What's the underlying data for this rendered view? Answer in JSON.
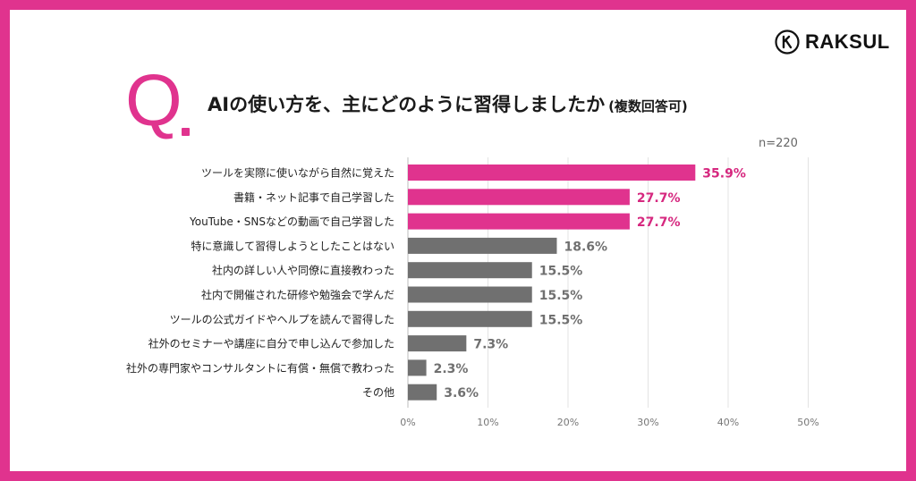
{
  "brand": {
    "name": "RAKSUL"
  },
  "question": {
    "mark": "Q",
    "text": "AIの使い方を、主にどのように習得しましたか",
    "note": "(複数回答可)",
    "sample": "n=220"
  },
  "colors": {
    "frame": "#e0338e",
    "highlight_bar": "#e0338e",
    "other_bar": "#707070",
    "highlight_label": "#d6287f",
    "other_label": "#707070"
  },
  "chart_data": {
    "type": "bar",
    "orientation": "horizontal",
    "categories": [
      "ツールを実際に使いながら自然に覚えた",
      "書籍・ネット記事で自己学習した",
      "YouTube・SNSなどの動画で自己学習した",
      "特に意識して習得しようとしたことはない",
      "社内の詳しい人や同僚に直接教わった",
      "社内で開催された研修や勉強会で学んだ",
      "ツールの公式ガイドやヘルプを読んで習得した",
      "社外のセミナーや講座に自分で申し込んで参加した",
      "社外の専門家やコンサルタントに有償・無償で教わった",
      "その他"
    ],
    "values": [
      35.9,
      27.7,
      27.7,
      18.6,
      15.5,
      15.5,
      15.5,
      7.3,
      2.3,
      3.6
    ],
    "value_labels": [
      "35.9%",
      "27.7%",
      "27.7%",
      "18.6%",
      "15.5%",
      "15.5%",
      "15.5%",
      "7.3%",
      "2.3%",
      "3.6%"
    ],
    "highlighted": [
      true,
      true,
      true,
      false,
      false,
      false,
      false,
      false,
      false,
      false
    ],
    "xlim": [
      0,
      50
    ],
    "ticks": [
      "0%",
      "10%",
      "20%",
      "30%",
      "40%",
      "50%"
    ],
    "tick_values": [
      0,
      10,
      20,
      30,
      40,
      50
    ],
    "grid": true
  }
}
